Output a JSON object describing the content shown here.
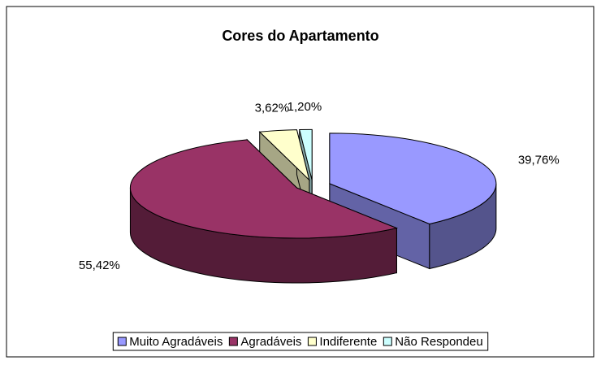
{
  "chart_data": {
    "type": "pie3d",
    "title": "Cores do Apartamento",
    "categories": [
      "Muito Agradáveis",
      "Agradáveis",
      "Indiferente",
      "Não Respondeu"
    ],
    "values": [
      39.76,
      55.42,
      3.62,
      1.2
    ],
    "value_labels": [
      "39,76%",
      "55,42%",
      "3,62%",
      "1,20%"
    ],
    "colors": [
      "#9999ff",
      "#993366",
      "#ffffcc",
      "#ccffff"
    ],
    "legend": "bottom"
  }
}
